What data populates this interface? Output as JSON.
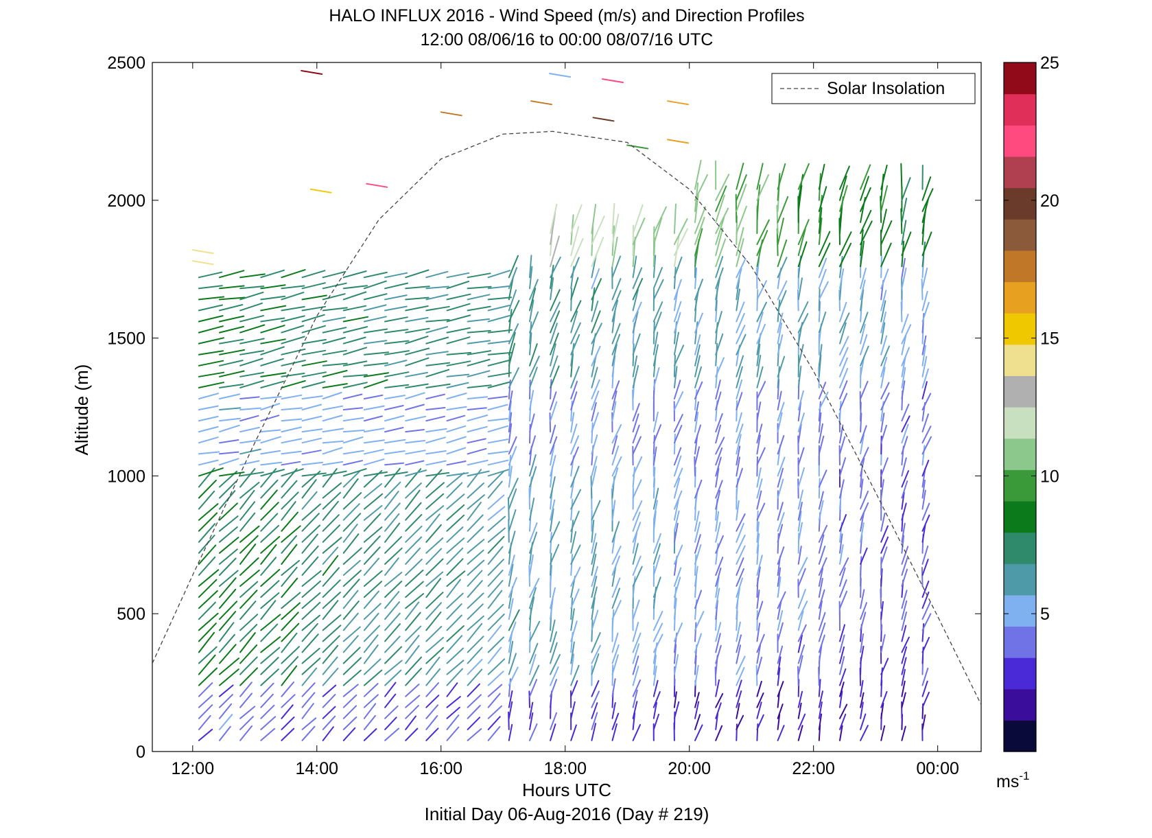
{
  "chart_data": {
    "type": "wind-barb-profile",
    "title": "HALO INFLUX 2016 - Wind Speed (m/s) and Direction Profiles",
    "subtitle": "12:00 08/06/16 to 00:00 08/07/16  UTC",
    "xlabel": "Hours UTC",
    "ylabel": "Altitude (m)",
    "footer": "Initial Day 06-Aug-2016 (Day # 219)",
    "x_ticks": [
      {
        "value": 12,
        "label": "12:00"
      },
      {
        "value": 14,
        "label": "14:00"
      },
      {
        "value": 16,
        "label": "16:00"
      },
      {
        "value": 18,
        "label": "18:00"
      },
      {
        "value": 20,
        "label": "20:00"
      },
      {
        "value": 22,
        "label": "22:00"
      },
      {
        "value": 24,
        "label": "00:00"
      }
    ],
    "xlim": [
      11.35,
      24.7
    ],
    "y_ticks": [
      0,
      500,
      1000,
      1500,
      2000,
      2500
    ],
    "ylim": [
      0,
      2500
    ],
    "legend": {
      "label": "Solar Insolation",
      "placement": "top-right",
      "line_style": "dashed",
      "color": "#444444"
    },
    "solar_insolation_curve": {
      "peak_time": 17.8,
      "peak_altitude_equiv": 2250,
      "points": [
        [
          11.35,
          320
        ],
        [
          12,
          640
        ],
        [
          13,
          1120
        ],
        [
          14,
          1580
        ],
        [
          15,
          1930
        ],
        [
          16,
          2150
        ],
        [
          17,
          2240
        ],
        [
          17.8,
          2250
        ],
        [
          19,
          2210
        ],
        [
          20,
          2040
        ],
        [
          21,
          1760
        ],
        [
          22,
          1380
        ],
        [
          23,
          940
        ],
        [
          24,
          490
        ],
        [
          24.7,
          170
        ]
      ]
    },
    "colorbar": {
      "ticks": [
        5,
        10,
        15,
        20,
        25
      ],
      "unit": "ms",
      "unit_exponent": "-1",
      "range": [
        0,
        25
      ],
      "colors": [
        "#0a0a3a",
        "#3a0d9a",
        "#4a2ad6",
        "#6f73e6",
        "#7fb0f0",
        "#4f9aa8",
        "#2e8a6a",
        "#0a7a1a",
        "#3a9a3a",
        "#8cc78c",
        "#c8e0c0",
        "#b0b0b0",
        "#efe090",
        "#f0c800",
        "#e8a020",
        "#c07828",
        "#8a5a3a",
        "#6a3a2a",
        "#b04050",
        "#ff4a80",
        "#e0305a",
        "#900a1a"
      ]
    },
    "barb_columns": {
      "time_start": 12.1,
      "time_end": 23.85,
      "time_step": 0.333,
      "altitude_start": 40,
      "altitude_step": 40
    },
    "speed_profile_m_s": [
      {
        "alt_max": 200,
        "speed_early": 4,
        "speed_late": 2
      },
      {
        "alt_max": 400,
        "speed_early": 8,
        "speed_late": 3
      },
      {
        "alt_max": 1000,
        "speed_early": 8,
        "speed_late": 3.5
      },
      {
        "alt_max": 1300,
        "speed_early": 5,
        "speed_late": 4
      },
      {
        "alt_max": 1750,
        "speed_early": 8,
        "speed_late": 5
      },
      {
        "alt_max": 2100,
        "speed_early": 16,
        "speed_late": 8
      }
    ],
    "upper_isolated_barbs": [
      {
        "t": 13.75,
        "alt": 2470,
        "speed": 24
      },
      {
        "t": 14.8,
        "alt": 2060,
        "speed": 22
      },
      {
        "t": 13.9,
        "alt": 2040,
        "speed": 15
      },
      {
        "t": 16.0,
        "alt": 2320,
        "speed": 18
      },
      {
        "t": 17.45,
        "alt": 2360,
        "speed": 18
      },
      {
        "t": 17.75,
        "alt": 2460,
        "speed": 5
      },
      {
        "t": 18.6,
        "alt": 2440,
        "speed": 22
      },
      {
        "t": 18.45,
        "alt": 2300,
        "speed": 20
      },
      {
        "t": 19.65,
        "alt": 2360,
        "speed": 17
      },
      {
        "t": 19.65,
        "alt": 2220,
        "speed": 16
      },
      {
        "t": 19.0,
        "alt": 2200,
        "speed": 10
      },
      {
        "t": 12.0,
        "alt": 1820,
        "speed": 14
      },
      {
        "t": 12.0,
        "alt": 1780,
        "speed": 14
      }
    ]
  }
}
